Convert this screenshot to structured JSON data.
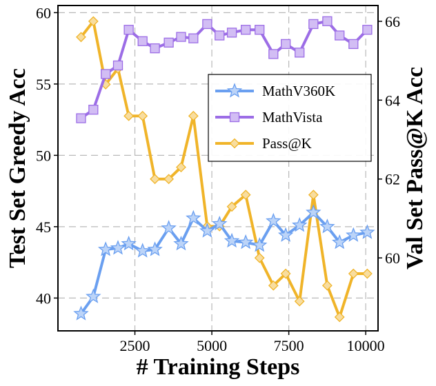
{
  "chart_data": {
    "type": "line",
    "xlabel": "# Training Steps",
    "ylabel_left": "Test Set Greedy Acc",
    "ylabel_right": "Val Set Pass@K Acc",
    "xlim": [
      0,
      10400
    ],
    "ylim_left": [
      37.7,
      60.5
    ],
    "ylim_right": [
      58.15,
      66.4
    ],
    "x_ticks": [
      2500,
      5000,
      7500,
      10000
    ],
    "y_left_ticks": [
      40,
      45,
      50,
      55,
      60
    ],
    "y_right_ticks": [
      60,
      62,
      64,
      66
    ],
    "grid": true,
    "legend_position": "right",
    "x": [
      750,
      1150,
      1550,
      1950,
      2300,
      2750,
      3150,
      3600,
      4000,
      4400,
      4850,
      5250,
      5650,
      6100,
      6550,
      7000,
      7400,
      7850,
      8300,
      8750,
      9150,
      9600,
      10050
    ],
    "series": [
      {
        "name": "MathV360K",
        "axis": "left",
        "color": "#6a9ff0",
        "marker": "star",
        "values": [
          38.9,
          40.1,
          43.4,
          43.5,
          43.8,
          43.3,
          43.4,
          44.9,
          43.8,
          45.6,
          44.7,
          45.2,
          44.0,
          43.9,
          43.7,
          45.4,
          44.4,
          45.1,
          46.0,
          45.0,
          43.9,
          44.4,
          44.6
        ]
      },
      {
        "name": "MathVista",
        "axis": "left",
        "color": "#9c6de6",
        "marker": "square",
        "values": [
          52.6,
          53.2,
          55.7,
          56.3,
          58.8,
          58.0,
          57.5,
          57.9,
          58.3,
          58.2,
          59.2,
          58.4,
          58.6,
          58.8,
          58.8,
          57.1,
          57.8,
          57.2,
          59.2,
          59.4,
          58.4,
          57.8,
          58.8
        ]
      },
      {
        "name": "Pass@K",
        "axis": "right",
        "color": "#f0b429",
        "marker": "diamond",
        "values": [
          65.6,
          66.0,
          64.4,
          64.8,
          63.6,
          63.6,
          62.0,
          62.0,
          62.3,
          63.6,
          60.8,
          60.8,
          61.3,
          61.6,
          60.0,
          59.3,
          59.6,
          58.9,
          61.6,
          59.3,
          58.5,
          59.6,
          59.6
        ]
      }
    ]
  }
}
